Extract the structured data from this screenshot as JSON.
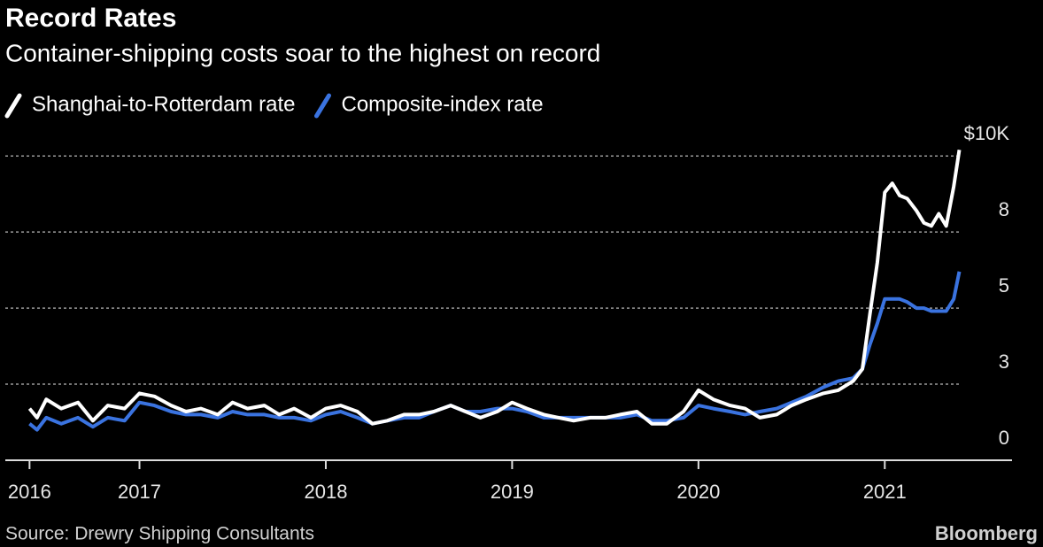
{
  "chart_data": {
    "type": "line",
    "title": "Record Rates",
    "subtitle": "Container-shipping costs soar to the highest on record",
    "source": "Source: Drewry Shipping Consultants",
    "brand": "Bloomberg",
    "x": [
      2016.41,
      2016.45,
      2016.5,
      2016.58,
      2016.67,
      2016.75,
      2016.83,
      2016.92,
      2017.0,
      2017.08,
      2017.17,
      2017.25,
      2017.33,
      2017.42,
      2017.5,
      2017.58,
      2017.67,
      2017.75,
      2017.83,
      2017.92,
      2018.0,
      2018.08,
      2018.17,
      2018.25,
      2018.33,
      2018.42,
      2018.5,
      2018.58,
      2018.67,
      2018.75,
      2018.83,
      2018.92,
      2019.0,
      2019.08,
      2019.17,
      2019.25,
      2019.33,
      2019.42,
      2019.5,
      2019.58,
      2019.67,
      2019.75,
      2019.83,
      2019.92,
      2020.0,
      2020.08,
      2020.17,
      2020.25,
      2020.33,
      2020.42,
      2020.5,
      2020.58,
      2020.67,
      2020.75,
      2020.83,
      2020.88,
      2020.92,
      2020.96,
      2021.0,
      2021.04,
      2021.08,
      2021.12,
      2021.17,
      2021.21,
      2021.25,
      2021.29,
      2021.33,
      2021.37,
      2021.4
    ],
    "series": [
      {
        "name": "Shanghai-to-Rotterdam rate",
        "color": "#ffffff",
        "values": [
          1.7,
          1.4,
          2.0,
          1.7,
          1.9,
          1.3,
          1.8,
          1.7,
          2.2,
          2.1,
          1.8,
          1.6,
          1.7,
          1.5,
          1.9,
          1.7,
          1.8,
          1.5,
          1.7,
          1.4,
          1.7,
          1.8,
          1.6,
          1.2,
          1.3,
          1.5,
          1.5,
          1.6,
          1.8,
          1.6,
          1.4,
          1.6,
          1.9,
          1.7,
          1.5,
          1.4,
          1.3,
          1.4,
          1.4,
          1.5,
          1.6,
          1.2,
          1.2,
          1.6,
          2.3,
          2.0,
          1.8,
          1.7,
          1.4,
          1.5,
          1.8,
          2.0,
          2.2,
          2.3,
          2.6,
          3.0,
          4.8,
          6.5,
          8.8,
          9.1,
          8.7,
          8.6,
          8.2,
          7.8,
          7.7,
          8.1,
          7.7,
          9.0,
          10.2
        ]
      },
      {
        "name": "Composite-index rate",
        "color": "#3a73e0",
        "values": [
          1.2,
          1.0,
          1.4,
          1.2,
          1.4,
          1.1,
          1.4,
          1.3,
          1.9,
          1.8,
          1.6,
          1.5,
          1.5,
          1.4,
          1.6,
          1.5,
          1.5,
          1.4,
          1.4,
          1.3,
          1.5,
          1.6,
          1.4,
          1.2,
          1.3,
          1.4,
          1.4,
          1.6,
          1.8,
          1.6,
          1.6,
          1.7,
          1.7,
          1.6,
          1.4,
          1.4,
          1.4,
          1.4,
          1.4,
          1.4,
          1.5,
          1.3,
          1.3,
          1.4,
          1.8,
          1.7,
          1.6,
          1.5,
          1.6,
          1.7,
          1.9,
          2.1,
          2.4,
          2.6,
          2.7,
          3.0,
          3.8,
          4.5,
          5.3,
          5.3,
          5.3,
          5.2,
          5.0,
          5.0,
          4.9,
          4.9,
          4.9,
          5.3,
          6.2
        ]
      }
    ],
    "xlim": [
      2016.28,
      2021.45
    ],
    "xticks": [
      {
        "value": 2016.41,
        "label": "2016"
      },
      2017,
      2018,
      2019,
      2020,
      2021
    ],
    "ylim": [
      0,
      10.5
    ],
    "yticks": [
      0,
      {
        "value": 2.5,
        "label": "3"
      },
      5,
      {
        "value": 7.5,
        "label": "8"
      },
      {
        "value": 10,
        "label": "$10K"
      }
    ],
    "grid": true
  }
}
